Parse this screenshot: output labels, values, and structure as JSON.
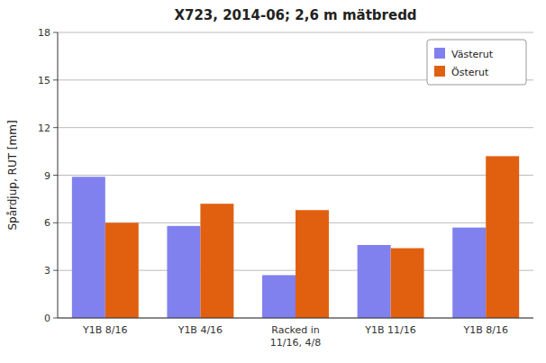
{
  "chart_data": {
    "type": "bar",
    "title": "X723, 2014-06; 2,6 m mätbredd",
    "ylabel": "Spårdjup, RUT [mm]",
    "categories": [
      "Y1B 8/16",
      "Y1B 4/16",
      "Racked in\n11/16, 4/8",
      "Y1B 11/16",
      "Y1B 8/16"
    ],
    "series": [
      {
        "name": "Västerut",
        "color": "#8080EE",
        "values": [
          8.9,
          5.8,
          2.7,
          4.6,
          5.7
        ]
      },
      {
        "name": "Österut",
        "color": "#E06010",
        "values": [
          6.0,
          7.2,
          6.8,
          4.4,
          10.2
        ]
      }
    ],
    "ylim": [
      0,
      18
    ],
    "yticks": [
      0,
      3,
      6,
      9,
      12,
      15,
      18
    ],
    "grid": true,
    "legend": "upper right"
  }
}
